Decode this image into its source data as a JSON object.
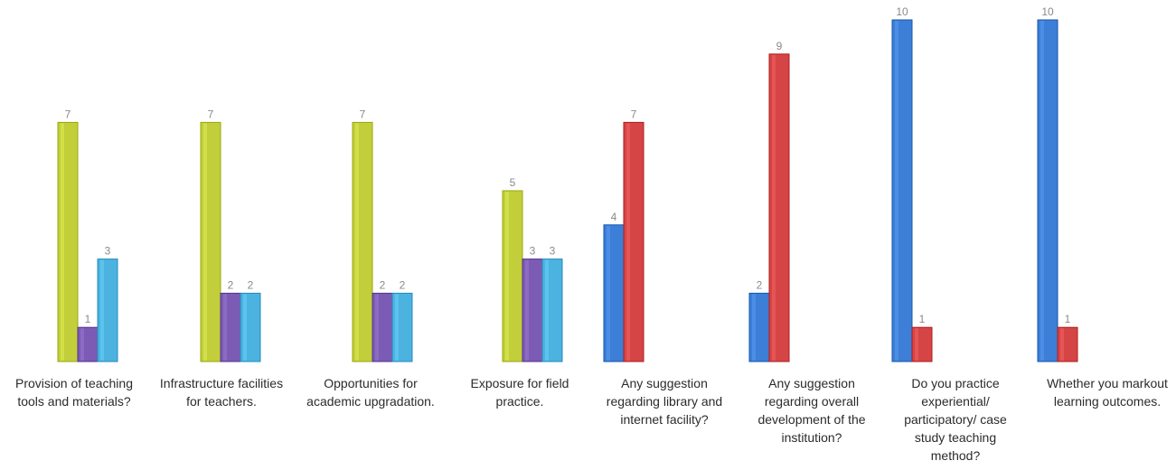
{
  "chart_data": {
    "type": "bar",
    "ylim": [
      0,
      10
    ],
    "grid": false,
    "groups": [
      {
        "label": "Provision of teaching tools and materials?",
        "lines": [
          "Provision of teaching",
          "tools and materials?"
        ],
        "bars": [
          {
            "value": 7,
            "color": "#c2cf3a"
          },
          {
            "value": 1,
            "color": "#7c5bb5"
          },
          {
            "value": 3,
            "color": "#4cb3e1"
          }
        ]
      },
      {
        "label": "Infrastructure facilities for teachers.",
        "lines": [
          "Infrastructure facilities",
          "for teachers."
        ],
        "bars": [
          {
            "value": 7,
            "color": "#c2cf3a"
          },
          {
            "value": 2,
            "color": "#7c5bb5"
          },
          {
            "value": 2,
            "color": "#4cb3e1"
          }
        ]
      },
      {
        "label": "Opportunities for academic upgradation.",
        "lines": [
          "Opportunities for",
          "academic upgradation."
        ],
        "bars": [
          {
            "value": 7,
            "color": "#c2cf3a"
          },
          {
            "value": 2,
            "color": "#7c5bb5"
          },
          {
            "value": 2,
            "color": "#4cb3e1"
          }
        ]
      },
      {
        "label": "Exposure for field practice.",
        "lines": [
          "Exposure for field",
          "practice."
        ],
        "bars": [
          {
            "value": 5,
            "color": "#c2cf3a"
          },
          {
            "value": 3,
            "color": "#7c5bb5"
          },
          {
            "value": 3,
            "color": "#4cb3e1"
          }
        ]
      },
      {
        "label": "Any suggestion regarding library and internet facility?",
        "lines": [
          "Any suggestion",
          "regarding library and",
          "internet facility?"
        ],
        "bars": [
          {
            "value": 4,
            "color": "#3d7fd6"
          },
          {
            "value": 7,
            "color": "#d64545"
          }
        ]
      },
      {
        "label": "Any suggestion regarding overall development of the institution?",
        "lines": [
          "Any suggestion",
          "regarding overall",
          "development of the",
          "institution?"
        ],
        "bars": [
          {
            "value": 2,
            "color": "#3d7fd6"
          },
          {
            "value": 9,
            "color": "#d64545"
          }
        ]
      },
      {
        "label": "Do you practice experiential/ participatory/ case study teaching method?",
        "lines": [
          "Do you practice",
          "experiential/",
          "participatory/ case",
          "study teaching",
          "method?"
        ],
        "bars": [
          {
            "value": 10,
            "color": "#3d7fd6"
          },
          {
            "value": 1,
            "color": "#d64545"
          }
        ]
      },
      {
        "label": "Whether you markout learning outcomes.",
        "lines": [
          "Whether you markout",
          "learning outcomes."
        ],
        "bars": [
          {
            "value": 10,
            "color": "#3d7fd6"
          },
          {
            "value": 1,
            "color": "#d64545"
          }
        ]
      }
    ]
  }
}
